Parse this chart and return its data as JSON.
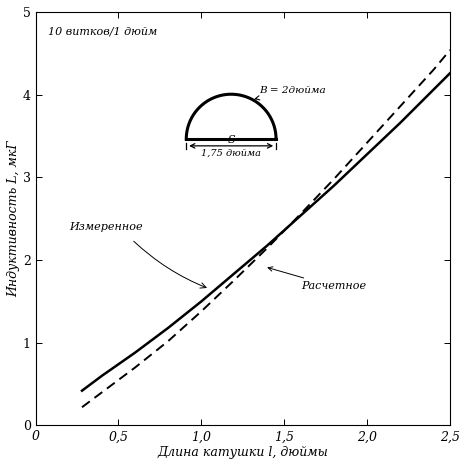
{
  "title": "",
  "xlabel": "Длина катушки l, дюймы",
  "ylabel": "Индуктивность L, мкГ",
  "xlim": [
    0,
    2.5
  ],
  "ylim": [
    0,
    5
  ],
  "xticks": [
    0,
    0.5,
    1.0,
    1.5,
    2.0,
    2.5
  ],
  "yticks": [
    0,
    1,
    2,
    3,
    4,
    5
  ],
  "xtick_labels": [
    "0",
    "0,5",
    "1,0",
    "1,5",
    "2,0",
    "2,5"
  ],
  "ytick_labels": [
    "0",
    "1",
    "2",
    "3",
    "4",
    "5"
  ],
  "measured_x": [
    0.28,
    0.4,
    0.6,
    0.8,
    1.0,
    1.2,
    1.4,
    1.6,
    1.8,
    2.0,
    2.2,
    2.4,
    2.5
  ],
  "measured_y": [
    0.42,
    0.6,
    0.88,
    1.18,
    1.5,
    1.84,
    2.18,
    2.54,
    2.9,
    3.28,
    3.66,
    4.06,
    4.26
  ],
  "calculated_x": [
    0.28,
    0.4,
    0.6,
    0.8,
    1.0,
    1.2,
    1.4,
    1.6,
    1.8,
    2.0,
    2.2,
    2.4,
    2.5
  ],
  "calculated_y": [
    0.22,
    0.4,
    0.7,
    1.02,
    1.38,
    1.76,
    2.15,
    2.56,
    2.98,
    3.42,
    3.86,
    4.3,
    4.54
  ],
  "measured_label": "Измеренное",
  "calculated_label": "Расчетное",
  "annotation_turns": "10 витков/1 дюйм",
  "annotation_B": "B = 2дюйма",
  "annotation_S": "S",
  "annotation_S_val": "1,75 дюйма",
  "line_color": "#000000",
  "background_color": "#ffffff",
  "fontsize_axis": 9,
  "fontsize_tick": 9,
  "fontsize_annotation": 8
}
